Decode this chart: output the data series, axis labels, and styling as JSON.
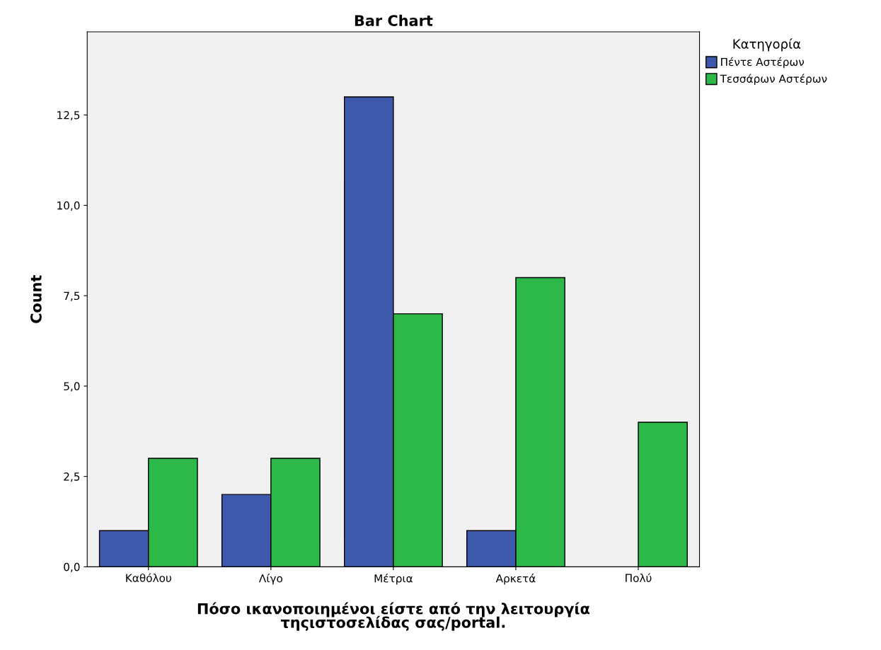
{
  "chart_data": {
    "type": "bar",
    "title": "Bar Chart",
    "categories": [
      "Καθόλου",
      "Λίγο",
      "Μέτρια",
      "Αρκετά",
      "Πολύ"
    ],
    "series": [
      {
        "name": "Πέντε Αστέρων",
        "color": "#3e58ac",
        "values": [
          1,
          2,
          13,
          1,
          null
        ]
      },
      {
        "name": "Τεσσάρων Αστέρων",
        "color": "#2db84a",
        "values": [
          3,
          3,
          7,
          8,
          4
        ]
      }
    ],
    "xlabel": "Πόσο ικανοποιημένοι είστε από την λειτουργία\nτηςιστοσελίδας σας/portal.",
    "ylabel": "Count",
    "legend_title": "Κατηγορία",
    "ylim": [
      0,
      14.8
    ],
    "yticks": [
      {
        "value": 0,
        "label": "0,0"
      },
      {
        "value": 2.5,
        "label": "2,5"
      },
      {
        "value": 5,
        "label": "5,0"
      },
      {
        "value": 7.5,
        "label": "7,5"
      },
      {
        "value": 10,
        "label": "10,0"
      },
      {
        "value": 12.5,
        "label": "12,5"
      }
    ],
    "grid": false,
    "legend": "top right"
  }
}
